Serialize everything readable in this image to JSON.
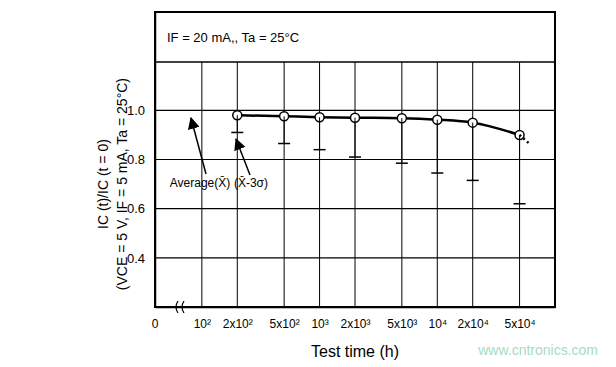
{
  "chart_data": {
    "type": "line",
    "annotations": [
      "IF = 20 mA,, Ta = 25°C",
      "0",
      "www.cntronics.com"
    ],
    "x_label": "Test time (h)",
    "y_label": [
      "IC (t)/IC (t = 0)",
      "(VCE = 5 V, IF = 5 mA, Ta = 25°C)"
    ],
    "x": [
      200,
      500,
      1000,
      2000,
      5000,
      10000,
      20000,
      50000,
      62000
    ],
    "series": [
      {
        "name": "Average(X̄)",
        "color": "#000000",
        "marker": "circle",
        "line_style": "solid",
        "values": [
          0.98,
          0.976,
          0.972,
          0.97,
          0.968,
          0.962,
          0.95,
          0.9,
          null
        ]
      },
      {
        "name": "(X̄-3σ)",
        "type": "scatter",
        "color": "#000000",
        "marker": "dash",
        "values": [
          0.91,
          0.865,
          0.84,
          0.81,
          0.785,
          0.745,
          0.715,
          0.62,
          null
        ]
      },
      {
        "color": "#000000",
        "line_style": "dotted",
        "values": [
          null,
          null,
          null,
          null,
          null,
          null,
          null,
          0.9,
          0.86
        ]
      }
    ],
    "xlim": [
      40,
      100000
    ],
    "ylim": [
      0.2,
      1.4
    ],
    "xticks": [
      {
        "value": 100,
        "label": "10²"
      },
      {
        "value": 200,
        "label": "2x10²"
      },
      {
        "value": 500,
        "label": "5x10²"
      },
      {
        "value": 1000,
        "label": "10³"
      },
      {
        "value": 2000,
        "label": "2x10³"
      },
      {
        "value": 5000,
        "label": "5x10³"
      },
      {
        "value": 10000,
        "label": "10⁴"
      },
      {
        "value": 20000,
        "label": "2x10⁴"
      },
      {
        "value": 50000,
        "label": "5x10⁴"
      }
    ],
    "yticks": [
      0.4,
      0.6,
      0.8,
      {
        "value": 1,
        "label": "1.0"
      }
    ],
    "log": "x",
    "grid": true
  }
}
